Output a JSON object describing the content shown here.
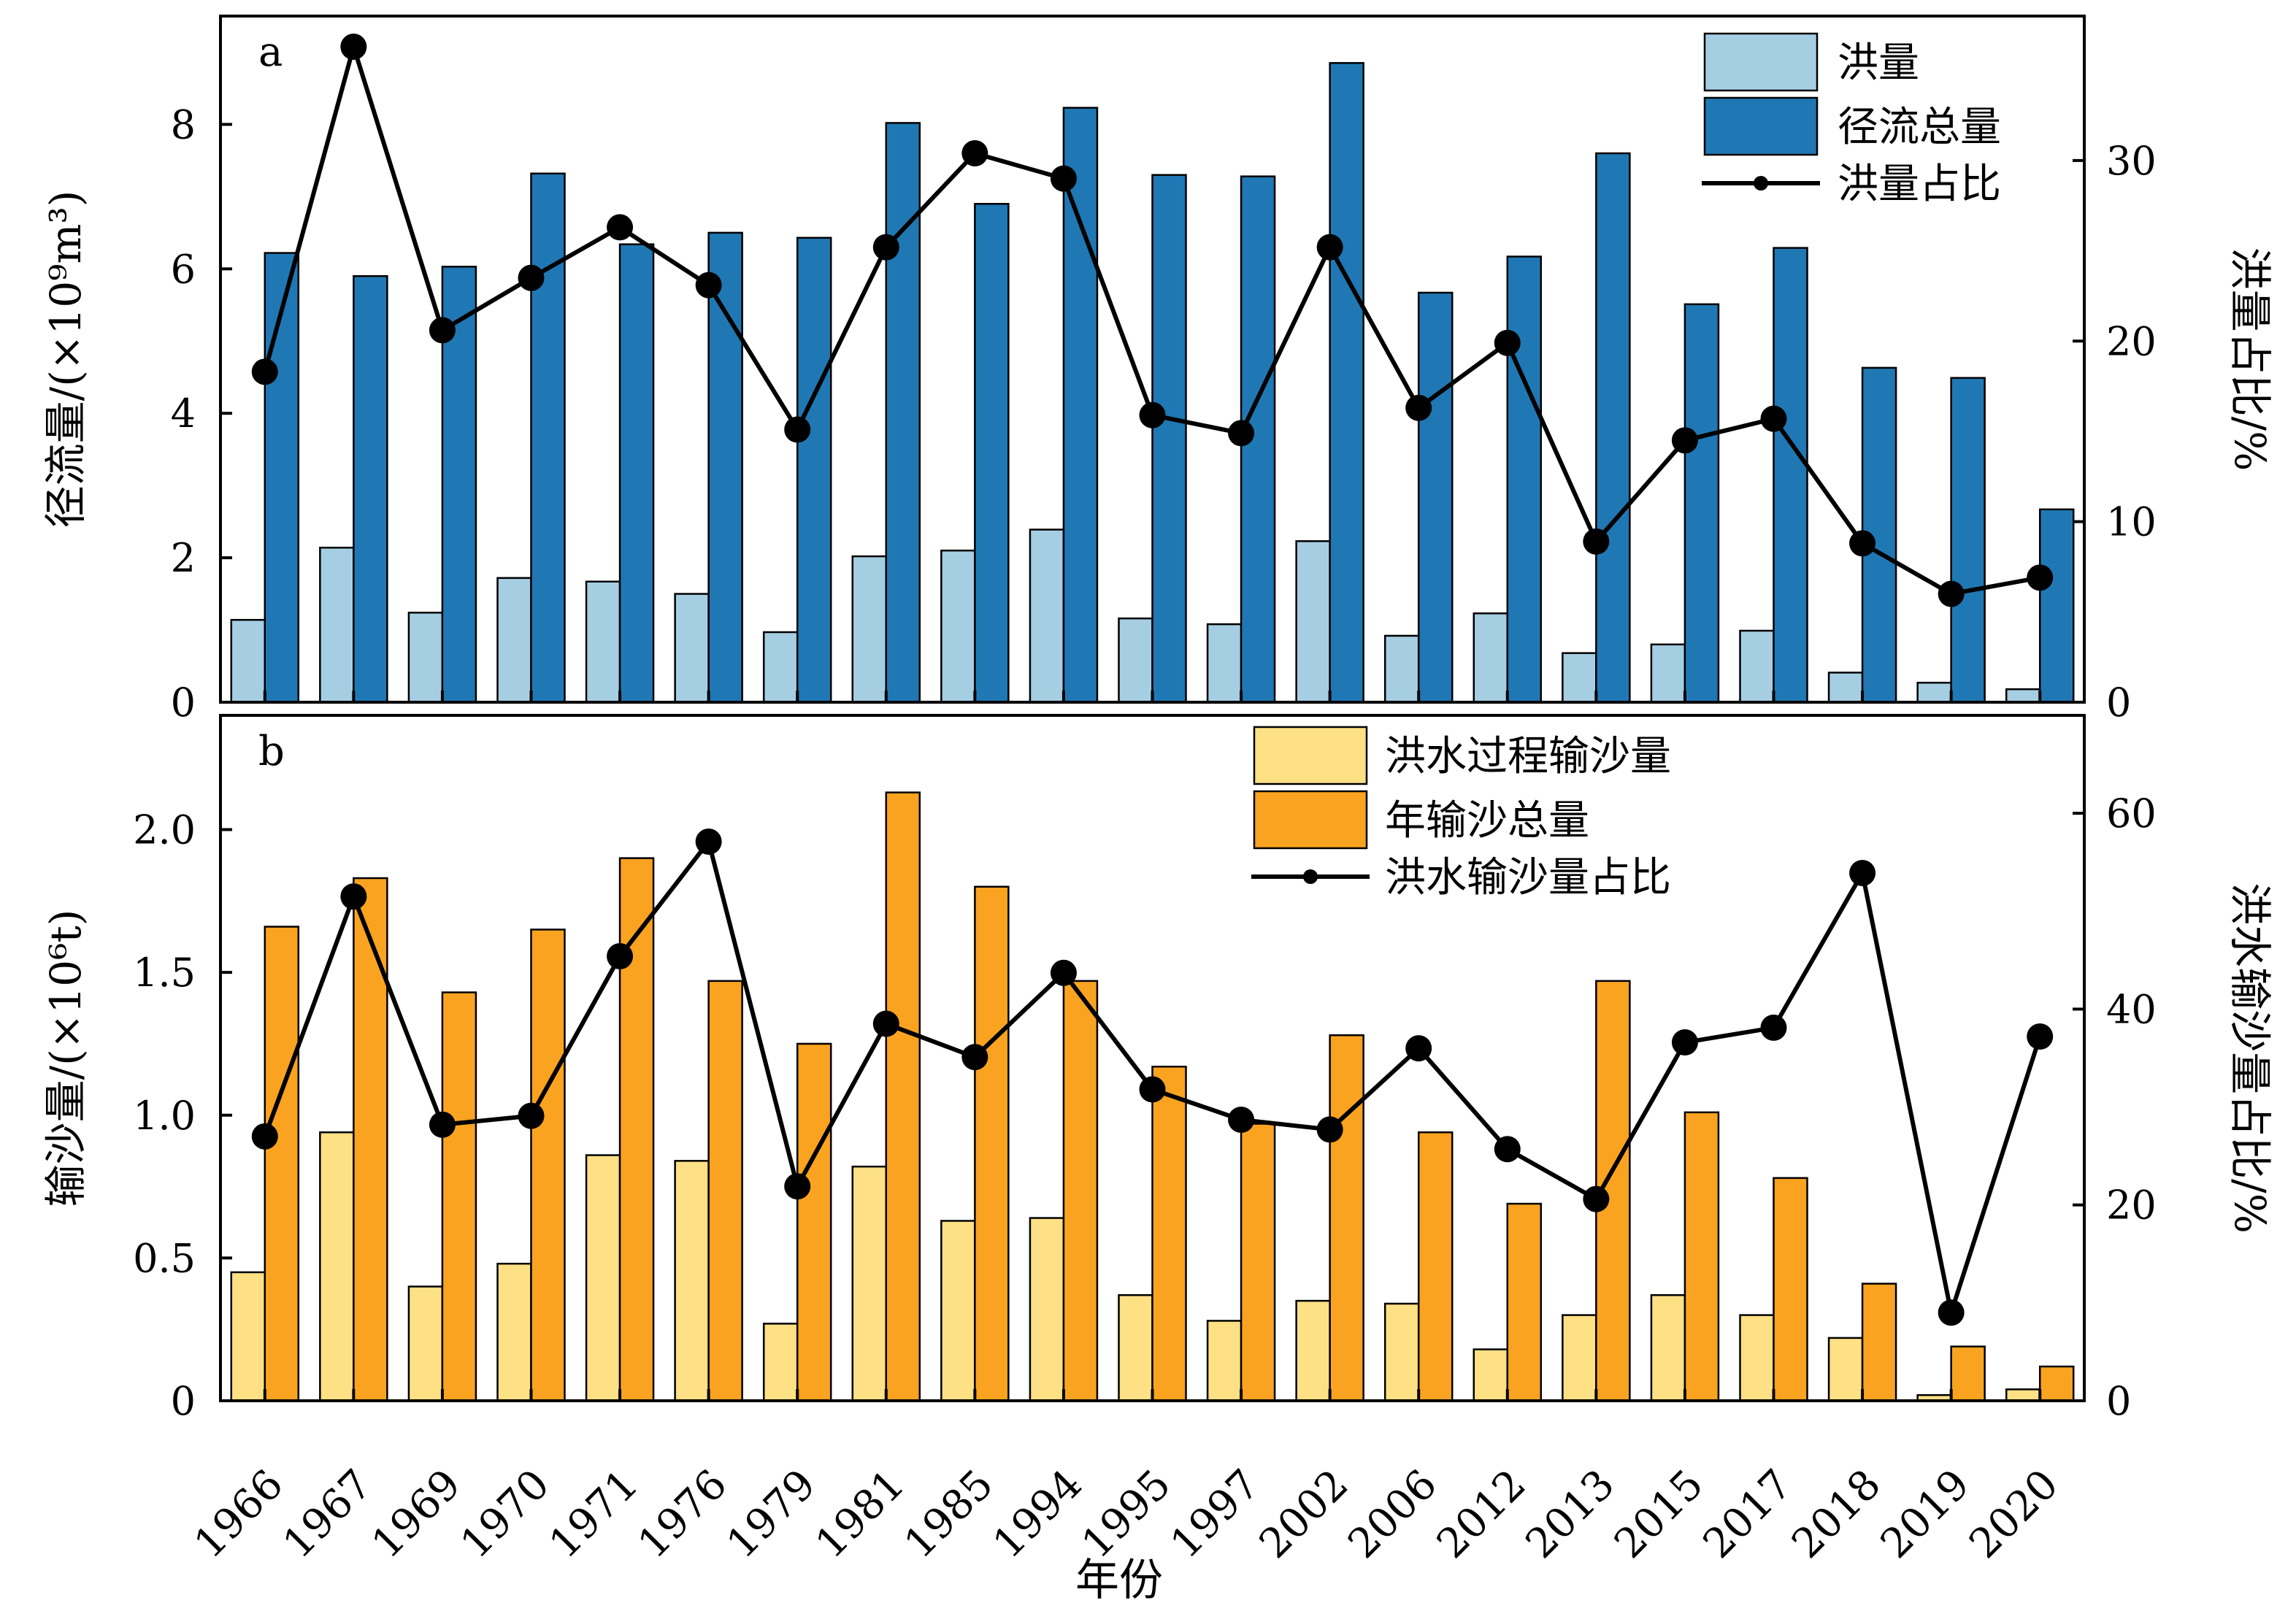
{
  "xlabel": "年份",
  "years": [
    "1966",
    "1967",
    "1969",
    "1970",
    "1971",
    "1976",
    "1979",
    "1981",
    "1985",
    "1994",
    "1995",
    "1997",
    "2002",
    "2006",
    "2012",
    "2013",
    "2015",
    "2017",
    "2018",
    "2019",
    "2020"
  ],
  "chart_data": [
    {
      "panel_label": "a",
      "type": "bar",
      "ylabel_left": "径流量/(×10⁹m³)",
      "ylabel_right": "洪量占比/%",
      "ylim_left": [
        0,
        9.5
      ],
      "yticks_left": [
        0,
        2,
        4,
        6,
        8
      ],
      "ylim_right": [
        0,
        38
      ],
      "yticks_right": [
        0,
        10,
        20,
        30
      ],
      "legend_position": "top-right",
      "series": [
        {
          "name": "洪量",
          "kind": "bar",
          "axis": "left",
          "color": "#a6cee3",
          "values": [
            1.14,
            2.14,
            1.24,
            1.72,
            1.67,
            1.5,
            0.97,
            2.02,
            2.1,
            2.39,
            1.16,
            1.08,
            2.23,
            0.92,
            1.23,
            0.68,
            0.8,
            0.99,
            0.41,
            0.27,
            0.18
          ]
        },
        {
          "name": "径流总量",
          "kind": "bar",
          "axis": "left",
          "color": "#1f78b4",
          "values": [
            6.22,
            5.9,
            6.03,
            7.32,
            6.34,
            6.5,
            6.43,
            8.02,
            6.9,
            8.23,
            7.3,
            7.28,
            8.85,
            5.67,
            6.17,
            7.6,
            5.51,
            6.29,
            4.63,
            4.49,
            2.67
          ]
        },
        {
          "name": "洪量占比",
          "kind": "line",
          "axis": "right",
          "color": "#000000",
          "values": [
            18.3,
            36.3,
            20.6,
            23.5,
            26.3,
            23.1,
            15.1,
            25.2,
            30.4,
            29.0,
            15.9,
            14.9,
            25.2,
            16.3,
            19.9,
            8.9,
            14.5,
            15.7,
            8.8,
            6.0,
            6.9
          ]
        }
      ]
    },
    {
      "panel_label": "b",
      "type": "bar",
      "ylabel_left": "输沙量/(×10⁶t)",
      "ylabel_right": "洪水输沙量占比/%",
      "ylim_left": [
        0,
        2.4
      ],
      "yticks_left": [
        "0",
        "0.5",
        "1.0",
        "1.5",
        "2.0"
      ],
      "ylim_right": [
        0,
        70
      ],
      "yticks_right": [
        0,
        20,
        40,
        60
      ],
      "legend_position": "top-center",
      "series": [
        {
          "name": "洪水过程输沙量",
          "kind": "bar",
          "axis": "left",
          "color": "#fee085",
          "values": [
            0.45,
            0.94,
            0.4,
            0.48,
            0.86,
            0.84,
            0.27,
            0.82,
            0.63,
            0.64,
            0.37,
            0.28,
            0.35,
            0.34,
            0.18,
            0.3,
            0.37,
            0.3,
            0.22,
            0.02,
            0.04
          ]
        },
        {
          "name": "年输沙总量",
          "kind": "bar",
          "axis": "left",
          "color": "#faa320",
          "values": [
            1.66,
            1.83,
            1.43,
            1.65,
            1.9,
            1.47,
            1.25,
            2.13,
            1.8,
            1.47,
            1.17,
            0.97,
            1.28,
            0.94,
            0.69,
            1.47,
            1.01,
            0.78,
            0.41,
            0.19,
            0.12
          ]
        },
        {
          "name": "洪水输沙量占比",
          "kind": "line",
          "axis": "right",
          "color": "#000000",
          "values": [
            27.0,
            51.5,
            28.2,
            29.1,
            45.4,
            57.1,
            21.9,
            38.5,
            35.1,
            43.7,
            31.8,
            28.7,
            27.7,
            36.0,
            25.7,
            20.6,
            36.6,
            38.1,
            53.9,
            9.0,
            37.2
          ]
        }
      ]
    }
  ]
}
